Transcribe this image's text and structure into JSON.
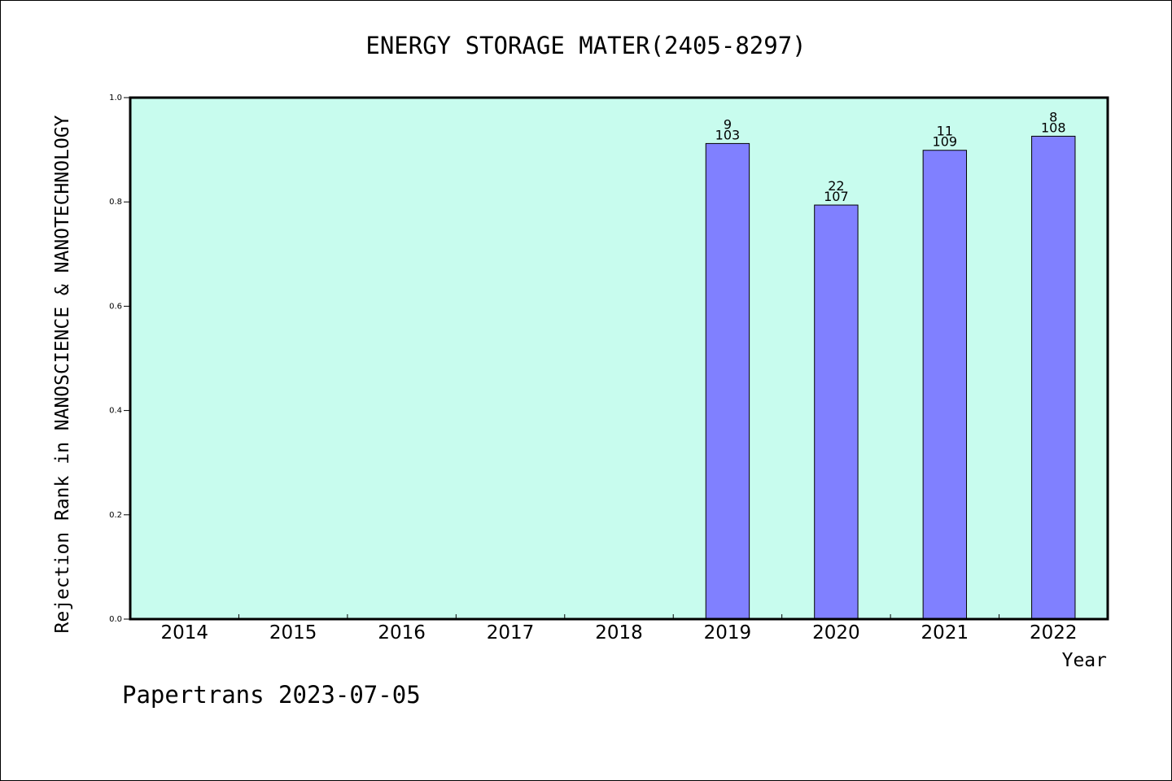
{
  "chart_data": {
    "type": "bar",
    "title": "ENERGY STORAGE MATER(2405-8297)",
    "xlabel": "Year",
    "ylabel": "Rejection Rank in NANOSCIENCE & NANOTECHNOLOGY",
    "categories": [
      "2014",
      "2015",
      "2016",
      "2017",
      "2018",
      "2019",
      "2020",
      "2021",
      "2022"
    ],
    "values": [
      null,
      null,
      null,
      null,
      null,
      0.912,
      0.794,
      0.899,
      0.926
    ],
    "bar_labels": [
      null,
      null,
      null,
      null,
      null,
      {
        "top": "9",
        "bottom": "103"
      },
      {
        "top": "22",
        "bottom": "107"
      },
      {
        "top": "11",
        "bottom": "109"
      },
      {
        "top": "8",
        "bottom": "108"
      }
    ],
    "ylim": [
      0.0,
      1.0
    ],
    "yticks": [
      "0.0",
      "0.2",
      "0.4",
      "0.6",
      "0.8",
      "1.0"
    ],
    "grid": false,
    "colors": {
      "plot_background": "#c8fcee",
      "bar_fill": "#8080ff",
      "bar_stroke": "#000000"
    }
  },
  "footer": {
    "text": "Papertrans 2023-07-05"
  }
}
